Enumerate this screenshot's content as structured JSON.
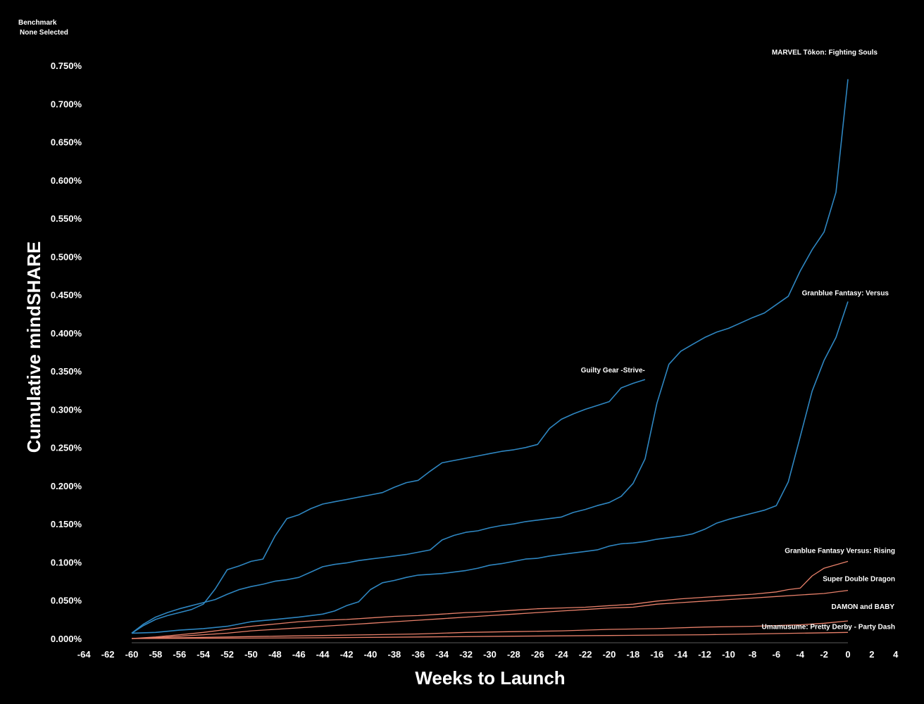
{
  "benchmark": {
    "label": "Benchmark",
    "value": "None Selected"
  },
  "chart_data": {
    "type": "line",
    "title": "",
    "xlabel": "Weeks to Launch",
    "ylabel": "Cumulative mindSHARE",
    "xlim": [
      -64,
      4
    ],
    "ylim": [
      0,
      0.75
    ],
    "x_ticks": [
      -64,
      -62,
      -60,
      -58,
      -56,
      -54,
      -52,
      -50,
      -48,
      -46,
      -44,
      -42,
      -40,
      -38,
      -36,
      -34,
      -32,
      -30,
      -28,
      -26,
      -24,
      -22,
      -20,
      -18,
      -16,
      -14,
      -12,
      -10,
      -8,
      -6,
      -4,
      -2,
      0,
      2,
      4
    ],
    "x_tick_labels": [
      "-64",
      "-62",
      "-60",
      "-58",
      "-56",
      "-54",
      "-52",
      "-50",
      "-48",
      "-46",
      "-44",
      "-42",
      "-40",
      "-38",
      "-36",
      "-34",
      "-32",
      "-30",
      "-28",
      "-26",
      "-24",
      "-22",
      "-20",
      "-18",
      "-16",
      "-14",
      "-12",
      "-10",
      "-8",
      "-6",
      "-4",
      "-2",
      "0",
      "2",
      "4"
    ],
    "y_ticks": [
      0,
      0.05,
      0.1,
      0.15,
      0.2,
      0.25,
      0.3,
      0.35,
      0.4,
      0.45,
      0.5,
      0.55,
      0.6,
      0.65,
      0.7,
      0.75
    ],
    "y_tick_labels": [
      "0.000%",
      "0.050%",
      "0.100%",
      "0.150%",
      "0.200%",
      "0.250%",
      "0.300%",
      "0.350%",
      "0.400%",
      "0.450%",
      "0.500%",
      "0.550%",
      "0.600%",
      "0.650%",
      "0.700%",
      "0.750%"
    ],
    "grid": false,
    "legend": "none (direct labels at line ends)",
    "series": [
      {
        "name": "Guilty Gear -Strive-",
        "color": "#2e86c1",
        "points": [
          [
            -60,
            0.007
          ],
          [
            -59,
            0.017
          ],
          [
            -58,
            0.025
          ],
          [
            -57,
            0.03
          ],
          [
            -56,
            0.034
          ],
          [
            -55,
            0.038
          ],
          [
            -54,
            0.045
          ],
          [
            -53,
            0.065
          ],
          [
            -52,
            0.09
          ],
          [
            -51,
            0.095
          ],
          [
            -50,
            0.101
          ],
          [
            -49,
            0.104
          ],
          [
            -48,
            0.134
          ],
          [
            -47,
            0.157
          ],
          [
            -46,
            0.162
          ],
          [
            -45,
            0.17
          ],
          [
            -44,
            0.176
          ],
          [
            -43,
            0.179
          ],
          [
            -42,
            0.182
          ],
          [
            -41,
            0.185
          ],
          [
            -40,
            0.188
          ],
          [
            -39,
            0.191
          ],
          [
            -38,
            0.198
          ],
          [
            -37,
            0.204
          ],
          [
            -36,
            0.207
          ],
          [
            -35,
            0.219
          ],
          [
            -34,
            0.23
          ],
          [
            -33,
            0.233
          ],
          [
            -32,
            0.236
          ],
          [
            -31,
            0.239
          ],
          [
            -30,
            0.242
          ],
          [
            -29,
            0.245
          ],
          [
            -28,
            0.247
          ],
          [
            -27,
            0.25
          ],
          [
            -26,
            0.254
          ],
          [
            -25,
            0.275
          ],
          [
            -24,
            0.287
          ],
          [
            -23,
            0.294
          ],
          [
            -22,
            0.3
          ],
          [
            -21,
            0.305
          ],
          [
            -20,
            0.31
          ],
          [
            -19,
            0.328
          ],
          [
            -18,
            0.334
          ],
          [
            -17,
            0.339
          ]
        ]
      },
      {
        "name": "MARVEL Tōkon: Fighting Souls",
        "color": "#2e86c1",
        "points": [
          [
            -60,
            0.007
          ],
          [
            -59,
            0.019
          ],
          [
            -58,
            0.028
          ],
          [
            -57,
            0.034
          ],
          [
            -56,
            0.039
          ],
          [
            -55,
            0.043
          ],
          [
            -54,
            0.047
          ],
          [
            -53,
            0.051
          ],
          [
            -52,
            0.058
          ],
          [
            -51,
            0.064
          ],
          [
            -50,
            0.068
          ],
          [
            -49,
            0.071
          ],
          [
            -48,
            0.075
          ],
          [
            -47,
            0.077
          ],
          [
            -46,
            0.08
          ],
          [
            -45,
            0.087
          ],
          [
            -44,
            0.094
          ],
          [
            -43,
            0.097
          ],
          [
            -42,
            0.099
          ],
          [
            -41,
            0.102
          ],
          [
            -40,
            0.104
          ],
          [
            -39,
            0.106
          ],
          [
            -38,
            0.108
          ],
          [
            -37,
            0.11
          ],
          [
            -36,
            0.113
          ],
          [
            -35,
            0.116
          ],
          [
            -34,
            0.129
          ],
          [
            -33,
            0.135
          ],
          [
            -32,
            0.139
          ],
          [
            -31,
            0.141
          ],
          [
            -30,
            0.145
          ],
          [
            -29,
            0.148
          ],
          [
            -28,
            0.15
          ],
          [
            -27,
            0.153
          ],
          [
            -26,
            0.155
          ],
          [
            -25,
            0.157
          ],
          [
            -24,
            0.159
          ],
          [
            -23,
            0.165
          ],
          [
            -22,
            0.169
          ],
          [
            -21,
            0.174
          ],
          [
            -20,
            0.178
          ],
          [
            -19,
            0.186
          ],
          [
            -18,
            0.203
          ],
          [
            -17,
            0.235
          ],
          [
            -16,
            0.308
          ],
          [
            -15,
            0.359
          ],
          [
            -14,
            0.376
          ],
          [
            -13,
            0.385
          ],
          [
            -12,
            0.394
          ],
          [
            -11,
            0.401
          ],
          [
            -10,
            0.406
          ],
          [
            -9,
            0.413
          ],
          [
            -8,
            0.42
          ],
          [
            -7,
            0.426
          ],
          [
            -6,
            0.437
          ],
          [
            -5,
            0.448
          ],
          [
            -4,
            0.481
          ],
          [
            -3,
            0.509
          ],
          [
            -2,
            0.532
          ],
          [
            -1,
            0.584
          ],
          [
            0,
            0.732
          ]
        ]
      },
      {
        "name": "Granblue Fantasy: Versus",
        "color": "#2e86c1",
        "points": [
          [
            -60,
            0.007
          ],
          [
            -58,
            0.008
          ],
          [
            -56,
            0.011
          ],
          [
            -54,
            0.013
          ],
          [
            -52,
            0.016
          ],
          [
            -51,
            0.019
          ],
          [
            -50,
            0.022
          ],
          [
            -48,
            0.025
          ],
          [
            -46,
            0.028
          ],
          [
            -44,
            0.032
          ],
          [
            -43,
            0.036
          ],
          [
            -42,
            0.043
          ],
          [
            -41,
            0.048
          ],
          [
            -40,
            0.064
          ],
          [
            -39,
            0.073
          ],
          [
            -38,
            0.076
          ],
          [
            -37,
            0.08
          ],
          [
            -36,
            0.083
          ],
          [
            -35,
            0.084
          ],
          [
            -34,
            0.085
          ],
          [
            -33,
            0.087
          ],
          [
            -32,
            0.089
          ],
          [
            -31,
            0.092
          ],
          [
            -30,
            0.096
          ],
          [
            -29,
            0.098
          ],
          [
            -28,
            0.101
          ],
          [
            -27,
            0.104
          ],
          [
            -26,
            0.105
          ],
          [
            -25,
            0.108
          ],
          [
            -24,
            0.11
          ],
          [
            -23,
            0.112
          ],
          [
            -22,
            0.114
          ],
          [
            -21,
            0.116
          ],
          [
            -20,
            0.121
          ],
          [
            -19,
            0.124
          ],
          [
            -18,
            0.125
          ],
          [
            -17,
            0.127
          ],
          [
            -16,
            0.13
          ],
          [
            -15,
            0.132
          ],
          [
            -14,
            0.134
          ],
          [
            -13,
            0.137
          ],
          [
            -12,
            0.143
          ],
          [
            -11,
            0.151
          ],
          [
            -10,
            0.156
          ],
          [
            -9,
            0.16
          ],
          [
            -8,
            0.164
          ],
          [
            -7,
            0.168
          ],
          [
            -6,
            0.174
          ],
          [
            -5,
            0.205
          ],
          [
            -4,
            0.264
          ],
          [
            -3,
            0.324
          ],
          [
            -2,
            0.364
          ],
          [
            -1,
            0.394
          ],
          [
            0,
            0.441
          ]
        ]
      },
      {
        "name": "Granblue Fantasy Versus: Rising",
        "color": "#e8806a",
        "points": [
          [
            -60,
            0.0
          ],
          [
            -58,
            0.002
          ],
          [
            -56,
            0.005
          ],
          [
            -54,
            0.008
          ],
          [
            -52,
            0.012
          ],
          [
            -50,
            0.016
          ],
          [
            -48,
            0.019
          ],
          [
            -46,
            0.022
          ],
          [
            -44,
            0.024
          ],
          [
            -42,
            0.025
          ],
          [
            -40,
            0.027
          ],
          [
            -38,
            0.029
          ],
          [
            -36,
            0.03
          ],
          [
            -34,
            0.032
          ],
          [
            -32,
            0.034
          ],
          [
            -30,
            0.035
          ],
          [
            -28,
            0.037
          ],
          [
            -26,
            0.039
          ],
          [
            -24,
            0.04
          ],
          [
            -22,
            0.041
          ],
          [
            -20,
            0.043
          ],
          [
            -18,
            0.045
          ],
          [
            -16,
            0.049
          ],
          [
            -14,
            0.052
          ],
          [
            -12,
            0.054
          ],
          [
            -10,
            0.056
          ],
          [
            -8,
            0.058
          ],
          [
            -6,
            0.061
          ],
          [
            -5,
            0.064
          ],
          [
            -4,
            0.066
          ],
          [
            -3,
            0.082
          ],
          [
            -2,
            0.092
          ],
          [
            0,
            0.101
          ]
        ]
      },
      {
        "name": "Super Double Dragon",
        "color": "#e8806a",
        "points": [
          [
            -60,
            0.0
          ],
          [
            -58,
            0.001
          ],
          [
            -56,
            0.003
          ],
          [
            -54,
            0.005
          ],
          [
            -52,
            0.007
          ],
          [
            -50,
            0.01
          ],
          [
            -48,
            0.012
          ],
          [
            -46,
            0.014
          ],
          [
            -44,
            0.016
          ],
          [
            -42,
            0.018
          ],
          [
            -40,
            0.02
          ],
          [
            -38,
            0.022
          ],
          [
            -36,
            0.024
          ],
          [
            -34,
            0.026
          ],
          [
            -32,
            0.028
          ],
          [
            -30,
            0.03
          ],
          [
            -28,
            0.032
          ],
          [
            -26,
            0.034
          ],
          [
            -24,
            0.036
          ],
          [
            -22,
            0.038
          ],
          [
            -20,
            0.04
          ],
          [
            -18,
            0.041
          ],
          [
            -16,
            0.045
          ],
          [
            -14,
            0.047
          ],
          [
            -12,
            0.049
          ],
          [
            -10,
            0.051
          ],
          [
            -8,
            0.053
          ],
          [
            -6,
            0.055
          ],
          [
            -4,
            0.057
          ],
          [
            -2,
            0.059
          ],
          [
            0,
            0.063
          ]
        ]
      },
      {
        "name": "DAMON and BABY",
        "color": "#e8806a",
        "points": [
          [
            -60,
            0.0
          ],
          [
            -56,
            0.001
          ],
          [
            -52,
            0.002
          ],
          [
            -48,
            0.003
          ],
          [
            -44,
            0.004
          ],
          [
            -40,
            0.005
          ],
          [
            -36,
            0.006
          ],
          [
            -32,
            0.008
          ],
          [
            -28,
            0.009
          ],
          [
            -24,
            0.01
          ],
          [
            -20,
            0.012
          ],
          [
            -16,
            0.013
          ],
          [
            -12,
            0.015
          ],
          [
            -8,
            0.016
          ],
          [
            -4,
            0.018
          ],
          [
            -2,
            0.02
          ],
          [
            0,
            0.023
          ]
        ]
      },
      {
        "name": "Umamusume: Pretty Derby - Party Dash",
        "color": "#e8806a",
        "points": [
          [
            -60,
            0.0
          ],
          [
            -52,
            0.0005
          ],
          [
            -44,
            0.001
          ],
          [
            -36,
            0.002
          ],
          [
            -28,
            0.003
          ],
          [
            -20,
            0.004
          ],
          [
            -16,
            0.0045
          ],
          [
            -12,
            0.005
          ],
          [
            -8,
            0.006
          ],
          [
            -4,
            0.007
          ],
          [
            0,
            0.008
          ]
        ]
      }
    ]
  }
}
